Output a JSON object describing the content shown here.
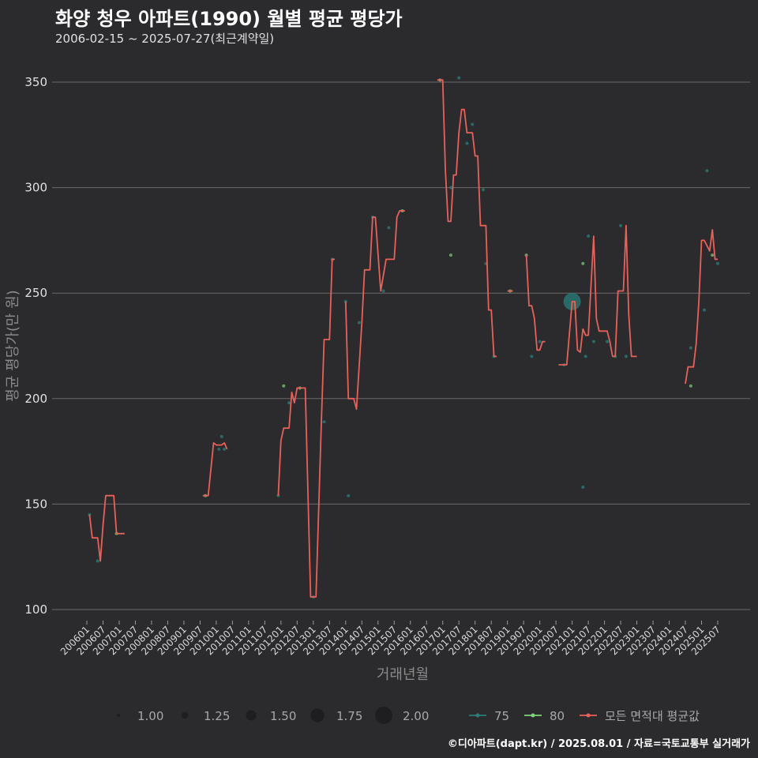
{
  "header": {
    "title": "화양 청우 아파트(1990) 월별 평균 평당가",
    "subtitle": "2006-02-15 ~ 2025-07-27(최근계약일)"
  },
  "footer": {
    "credit": "©디아파트(dapt.kr) / 2025.08.01 / 자료=국토교통부 실거래가"
  },
  "colors": {
    "background": "#2b2b2d",
    "grid": "#6a6a6a",
    "series_75": "#2a7f7a",
    "series_80": "#7fd37a",
    "series_all": "#e8605a"
  },
  "chart_data": {
    "type": "line",
    "title": "화양 청우 아파트(1990) 월별 평균 평당가",
    "xlabel": "거래년월",
    "ylabel": "평균 평당가(만 원)",
    "ylim": [
      100,
      350
    ],
    "yticks": [
      100,
      150,
      200,
      250,
      300,
      350
    ],
    "x_range": [
      "2006-01",
      "2025-07"
    ],
    "xticks": [
      "200601",
      "200607",
      "200701",
      "200707",
      "200801",
      "200807",
      "200901",
      "200907",
      "201001",
      "201007",
      "201101",
      "201107",
      "201201",
      "201207",
      "201301",
      "201307",
      "201401",
      "201407",
      "201501",
      "201507",
      "201601",
      "201607",
      "201701",
      "201707",
      "201801",
      "201807",
      "201901",
      "201907",
      "202001",
      "202007",
      "202101",
      "202107",
      "202201",
      "202207",
      "202301",
      "202307",
      "202401",
      "202407",
      "202501",
      "202507"
    ],
    "legend": {
      "size_title": "",
      "sizes": [
        1.0,
        1.25,
        1.5,
        1.75,
        2.0
      ],
      "size_labels": [
        "1.00",
        "1.25",
        "1.50",
        "1.75",
        "2.00"
      ],
      "series_labels": [
        "75",
        "80",
        "모든 면적대 평균값"
      ],
      "placement": "bottom"
    },
    "series": [
      {
        "name": "모든 면적대 평균값",
        "segments": [
          [
            [
              "2006-02",
              145
            ],
            [
              "2006-03",
              134
            ],
            [
              "2006-05",
              134
            ],
            [
              "2006-06",
              123
            ],
            [
              "2006-07",
              140
            ],
            [
              "2006-08",
              154
            ],
            [
              "2006-11",
              154
            ],
            [
              "2006-12",
              136
            ],
            [
              "2007-03",
              136
            ]
          ],
          [
            [
              "2009-08",
              154
            ],
            [
              "2009-10",
              154
            ],
            [
              "2009-12",
              179
            ],
            [
              "2010-01",
              178
            ],
            [
              "2010-02",
              178
            ],
            [
              "2010-03",
              178
            ],
            [
              "2010-04",
              179
            ],
            [
              "2010-05",
              176
            ]
          ],
          [
            [
              "2011-12",
              154
            ],
            [
              "2012-01",
              180
            ],
            [
              "2012-02",
              186
            ],
            [
              "2012-03",
              186
            ],
            [
              "2012-04",
              186
            ],
            [
              "2012-05",
              203
            ],
            [
              "2012-06",
              198
            ],
            [
              "2012-07",
              205
            ],
            [
              "2012-10",
              205
            ],
            [
              "2012-12",
              106
            ],
            [
              "2013-01",
              106
            ],
            [
              "2013-02",
              106
            ],
            [
              "2013-04",
              190
            ],
            [
              "2013-05",
              228
            ],
            [
              "2013-07",
              228
            ],
            [
              "2013-08",
              266
            ],
            [
              "2013-09",
              266
            ]
          ],
          [
            [
              "2014-01",
              246
            ],
            [
              "2014-02",
              200
            ],
            [
              "2014-04",
              200
            ],
            [
              "2014-05",
              195
            ],
            [
              "2014-07",
              236
            ],
            [
              "2014-08",
              261
            ],
            [
              "2014-10",
              261
            ],
            [
              "2014-11",
              286
            ],
            [
              "2014-12",
              286
            ],
            [
              "2015-02",
              251
            ],
            [
              "2015-04",
              266
            ],
            [
              "2015-07",
              266
            ],
            [
              "2015-08",
              286
            ],
            [
              "2015-09",
              289
            ],
            [
              "2015-11",
              289
            ]
          ],
          [
            [
              "2016-11",
              351
            ],
            [
              "2017-01",
              351
            ],
            [
              "2017-02",
              308
            ],
            [
              "2017-03",
              284
            ],
            [
              "2017-04",
              284
            ],
            [
              "2017-05",
              306
            ],
            [
              "2017-06",
              306
            ],
            [
              "2017-07",
              326
            ],
            [
              "2017-08",
              337
            ],
            [
              "2017-09",
              337
            ],
            [
              "2017-10",
              326
            ],
            [
              "2017-12",
              326
            ],
            [
              "2018-01",
              315
            ],
            [
              "2018-02",
              315
            ],
            [
              "2018-03",
              282
            ],
            [
              "2018-05",
              282
            ],
            [
              "2018-06",
              242
            ],
            [
              "2018-07",
              242
            ],
            [
              "2018-08",
              220
            ],
            [
              "2018-09",
              220
            ]
          ],
          [
            [
              "2019-01",
              251
            ],
            [
              "2019-03",
              251
            ]
          ],
          [
            [
              "2019-08",
              268
            ],
            [
              "2019-09",
              244
            ],
            [
              "2019-10",
              244
            ],
            [
              "2019-11",
              238
            ],
            [
              "2019-12",
              223
            ],
            [
              "2020-01",
              223
            ],
            [
              "2020-02",
              227
            ],
            [
              "2020-03",
              227
            ]
          ],
          [
            [
              "2020-08",
              216
            ],
            [
              "2020-11",
              216
            ],
            [
              "2021-01",
              246
            ],
            [
              "2021-02",
              246
            ],
            [
              "2021-03",
              223
            ],
            [
              "2021-04",
              222
            ],
            [
              "2021-05",
              233
            ],
            [
              "2021-06",
              230
            ],
            [
              "2021-07",
              230
            ],
            [
              "2021-09",
              277
            ],
            [
              "2021-10",
              238
            ],
            [
              "2021-11",
              232
            ],
            [
              "2022-01",
              232
            ],
            [
              "2022-02",
              232
            ],
            [
              "2022-03",
              227
            ],
            [
              "2022-04",
              220
            ],
            [
              "2022-05",
              220
            ],
            [
              "2022-06",
              251
            ],
            [
              "2022-07",
              251
            ],
            [
              "2022-08",
              251
            ],
            [
              "2022-09",
              282
            ],
            [
              "2022-10",
              240
            ],
            [
              "2022-11",
              220
            ],
            [
              "2023-01",
              220
            ]
          ],
          [
            [
              "2024-07",
              207
            ],
            [
              "2024-08",
              215
            ],
            [
              "2024-10",
              215
            ],
            [
              "2024-11",
              226
            ],
            [
              "2024-12",
              246
            ],
            [
              "2025-01",
              275
            ],
            [
              "2025-02",
              275
            ],
            [
              "2025-04",
              270
            ],
            [
              "2025-05",
              280
            ],
            [
              "2025-06",
              266
            ],
            [
              "2025-07",
              266
            ]
          ]
        ]
      },
      {
        "name": "75",
        "points": [
          [
            "2006-02",
            145,
            1
          ],
          [
            "2006-05",
            123,
            1
          ],
          [
            "2010-03",
            182,
            1
          ],
          [
            "2010-02",
            176,
            1
          ],
          [
            "2010-04",
            176,
            1
          ],
          [
            "2011-12",
            154,
            1
          ],
          [
            "2012-04",
            198,
            1
          ],
          [
            "2013-01",
            106,
            1
          ],
          [
            "2013-05",
            189,
            1
          ],
          [
            "2013-08",
            266,
            1
          ],
          [
            "2014-01",
            246,
            1
          ],
          [
            "2014-02",
            154,
            1
          ],
          [
            "2014-06",
            236,
            1
          ],
          [
            "2014-11",
            286,
            1
          ],
          [
            "2015-03",
            251,
            1
          ],
          [
            "2015-05",
            281,
            1
          ],
          [
            "2017-04",
            300,
            1
          ],
          [
            "2017-07",
            352,
            1
          ],
          [
            "2017-10",
            321,
            1
          ],
          [
            "2017-12",
            330,
            1
          ],
          [
            "2018-04",
            299,
            1
          ],
          [
            "2018-05",
            264,
            1
          ],
          [
            "2018-08",
            220,
            1
          ],
          [
            "2019-10",
            220,
            1
          ],
          [
            "2020-01",
            227,
            1
          ],
          [
            "2020-10",
            216,
            1
          ],
          [
            "2021-01",
            246,
            2
          ],
          [
            "2021-05",
            158,
            1
          ],
          [
            "2021-06",
            220,
            1
          ],
          [
            "2021-07",
            277,
            1
          ],
          [
            "2021-09",
            227,
            1
          ],
          [
            "2022-02",
            227,
            1
          ],
          [
            "2022-05",
            220,
            1
          ],
          [
            "2022-07",
            282,
            1
          ],
          [
            "2022-09",
            220,
            1
          ],
          [
            "2024-09",
            224,
            1
          ],
          [
            "2025-02",
            242,
            1
          ],
          [
            "2025-03",
            308,
            1
          ],
          [
            "2025-07",
            264,
            1
          ]
        ]
      },
      {
        "name": "80",
        "points": [
          [
            "2006-12",
            136,
            1
          ],
          [
            "2009-09",
            154,
            1
          ],
          [
            "2012-02",
            206,
            1
          ],
          [
            "2012-08",
            205,
            1
          ],
          [
            "2015-10",
            289,
            1
          ],
          [
            "2016-12",
            351,
            1
          ],
          [
            "2017-04",
            268,
            1
          ],
          [
            "2019-02",
            251,
            1
          ],
          [
            "2019-08",
            268,
            1
          ],
          [
            "2021-05",
            264,
            1
          ],
          [
            "2024-09",
            206,
            1
          ],
          [
            "2025-05",
            268,
            1
          ]
        ]
      }
    ]
  }
}
